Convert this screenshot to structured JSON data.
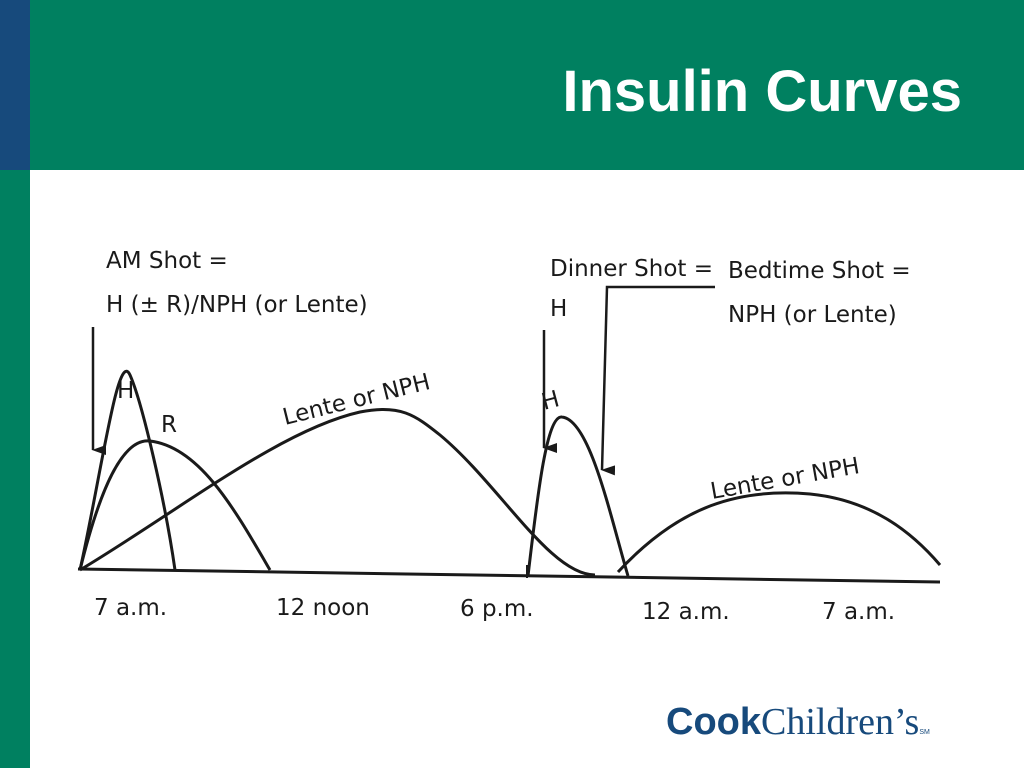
{
  "slide": {
    "title": "Insulin Curves"
  },
  "theme": {
    "header_color": "#008060",
    "left_bar_color": "#008060",
    "left_bar_top_color": "#174a7c",
    "logo_color": "#174a7c",
    "line_color": "#1a1a1a"
  },
  "diagram": {
    "time_labels": [
      "7 a.m.",
      "12 noon",
      "6 p.m.",
      "12 a.m.",
      "7 a.m."
    ],
    "shots": {
      "am_line1": "AM Shot =",
      "am_line2": "H (± R)/NPH (or Lente)",
      "dinner_line1": "Dinner Shot =",
      "dinner_line2": "H",
      "bedtime_line1": "Bedtime Shot =",
      "bedtime_line2": "NPH (or Lente)"
    },
    "curve_labels": {
      "h_morning": "H",
      "r_morning": "R",
      "lente_morning": "Lente or NPH",
      "h_dinner": "H",
      "lente_bedtime": "Lente or NPH"
    }
  },
  "logo": {
    "cook": "Cook",
    "children": "Children’s",
    "sm": "SM"
  }
}
